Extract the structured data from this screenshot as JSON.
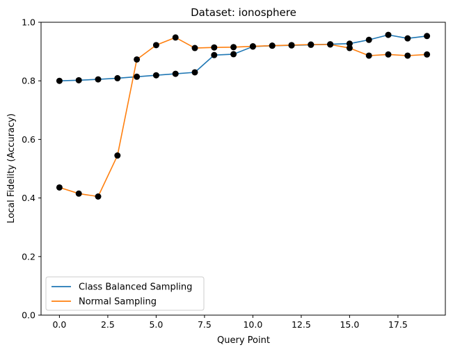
{
  "chart_data": {
    "type": "line",
    "title": "Dataset: ionosphere",
    "xlabel": "Query Point",
    "ylabel": "Local Fidelity (Accuracy)",
    "xlim": [
      -0.95,
      19.95
    ],
    "ylim": [
      0.0,
      1.0
    ],
    "xticks": [
      0.0,
      2.5,
      5.0,
      7.5,
      10.0,
      12.5,
      15.0,
      17.5
    ],
    "xtick_labels": [
      "0.0",
      "2.5",
      "5.0",
      "7.5",
      "10.0",
      "12.5",
      "15.0",
      "17.5"
    ],
    "yticks": [
      0.0,
      0.2,
      0.4,
      0.6,
      0.8,
      1.0
    ],
    "ytick_labels": [
      "0.0",
      "0.2",
      "0.4",
      "0.6",
      "0.8",
      "1.0"
    ],
    "grid": false,
    "legend_position": "lower-left",
    "marker_color": "#000000",
    "x": [
      0,
      1,
      2,
      3,
      4,
      5,
      6,
      7,
      8,
      9,
      10,
      11,
      12,
      13,
      14,
      15,
      16,
      17,
      18,
      19
    ],
    "series": [
      {
        "name": "Class Balanced Sampling",
        "color": "#1f77b4",
        "values": [
          0.8,
          0.802,
          0.805,
          0.809,
          0.814,
          0.819,
          0.824,
          0.829,
          0.888,
          0.891,
          0.917,
          0.92,
          0.921,
          0.923,
          0.925,
          0.927,
          0.94,
          0.957,
          0.945,
          0.953
        ]
      },
      {
        "name": "Normal Sampling",
        "color": "#ff7f0e",
        "values": [
          0.436,
          0.415,
          0.405,
          0.545,
          0.873,
          0.922,
          0.948,
          0.912,
          0.914,
          0.915,
          0.918,
          0.92,
          0.922,
          0.924,
          0.924,
          0.912,
          0.886,
          0.89,
          0.886,
          0.89
        ]
      }
    ]
  }
}
